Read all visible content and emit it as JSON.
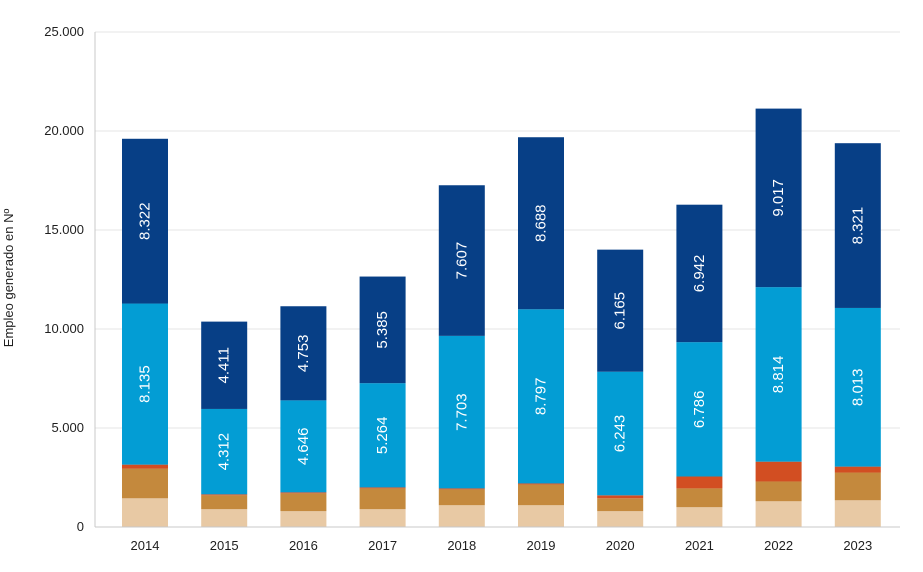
{
  "chart_data": {
    "type": "bar",
    "stacked": true,
    "ylabel": "Empleo generado en Nº",
    "ylim": [
      0,
      25000
    ],
    "yticks": [
      0,
      5000,
      10000,
      15000,
      20000,
      25000
    ],
    "ytick_labels": [
      "0",
      "5.000",
      "10.000",
      "15.000",
      "20.000",
      "25.000"
    ],
    "categories": [
      "2014",
      "2015",
      "2016",
      "2017",
      "2018",
      "2019",
      "2020",
      "2021",
      "2022",
      "2023"
    ],
    "series": [
      {
        "color": "#e8c9a4",
        "values": [
          1450,
          900,
          800,
          900,
          1100,
          1100,
          800,
          1000,
          1300,
          1350
        ],
        "show_labels": false
      },
      {
        "color": "#c4893d",
        "values": [
          1500,
          700,
          900,
          1050,
          800,
          1050,
          650,
          950,
          1000,
          1400
        ],
        "show_labels": false
      },
      {
        "color": "#d24e22",
        "values": [
          200,
          50,
          50,
          50,
          50,
          50,
          150,
          600,
          1000,
          300
        ],
        "show_labels": false
      },
      {
        "color": "#039dd4",
        "values": [
          8135,
          4312,
          4646,
          5264,
          7703,
          8797,
          6243,
          6786,
          8814,
          8013
        ],
        "labels": [
          "8.135",
          "4.312",
          "4.646",
          "5.264",
          "7.703",
          "8.797",
          "6.243",
          "6.786",
          "8.814",
          "8.013"
        ],
        "show_labels": true
      },
      {
        "color": "#073f86",
        "values": [
          8322,
          4411,
          4753,
          5385,
          7607,
          8688,
          6165,
          6942,
          9017,
          8321
        ],
        "labels": [
          "8.322",
          "4.411",
          "4.753",
          "5.385",
          "7.607",
          "8.688",
          "6.165",
          "6.942",
          "9.017",
          "8.321"
        ],
        "show_labels": true
      }
    ],
    "gridlines": true,
    "gridline_color": "#e4e4e4",
    "axis_color": "#c8c8c8"
  }
}
